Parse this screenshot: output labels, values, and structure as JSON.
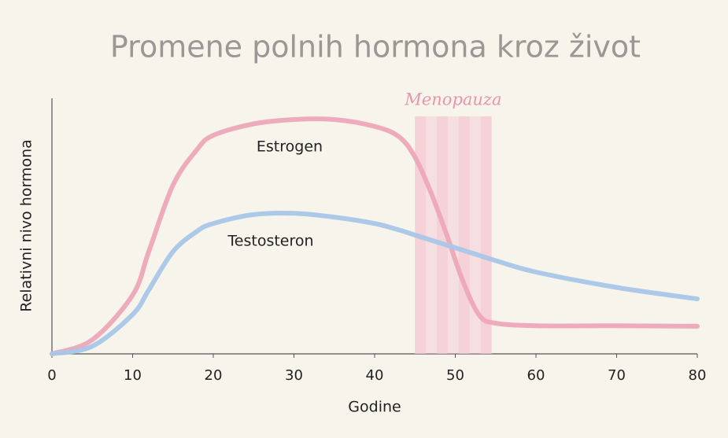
{
  "chart_data": {
    "type": "line",
    "title": "Promene polnih hormona kroz život",
    "x_label": "Godine",
    "y_label": "Relativni nivo hormona",
    "annotation": "Menopauza",
    "band": [
      45,
      54.5
    ],
    "band_color": "#f4c6d2",
    "x": [
      0,
      5,
      10,
      12,
      15,
      18,
      20,
      25,
      30,
      35,
      40,
      43,
      45,
      47,
      49,
      51,
      53,
      55,
      60,
      70,
      80
    ],
    "series": [
      {
        "name": "Estrogen",
        "color": "#eda6b8",
        "values": [
          0,
          5.5,
          23,
          40,
          66,
          80,
          85.5,
          90,
          91.7,
          91.7,
          89,
          85,
          77,
          63,
          46,
          28,
          15,
          12,
          11,
          11,
          10.8
        ]
      },
      {
        "name": "Testosteron",
        "color": "#a9c6e8",
        "values": [
          0,
          3,
          15.4,
          25,
          40,
          48,
          51,
          54.5,
          55,
          53.5,
          51,
          48.5,
          46.5,
          44.5,
          42.5,
          40.5,
          38.5,
          36.5,
          32,
          26,
          21.5
        ]
      }
    ],
    "xlim": [
      0,
      80
    ],
    "xticks": [
      0,
      10,
      20,
      30,
      40,
      50,
      60,
      70,
      80
    ],
    "ylim": [
      0,
      100
    ]
  }
}
